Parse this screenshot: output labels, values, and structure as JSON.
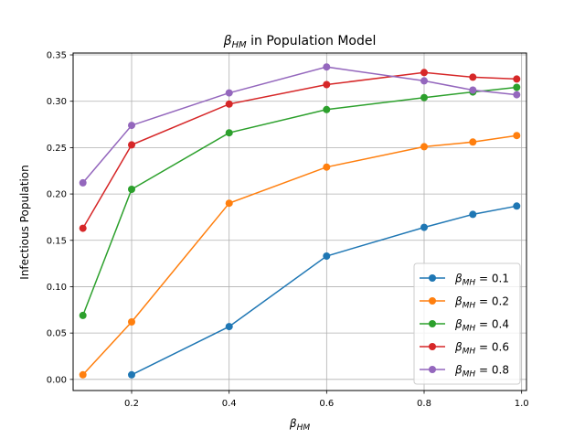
{
  "chart_data": {
    "type": "line",
    "title": "β_HM in Population Model",
    "title_main": "β",
    "title_sub": "HM",
    "title_rest": " in Population Model",
    "xlabel": "β_HM",
    "xlabel_main": "β",
    "xlabel_sub": "HM",
    "ylabel": "Infectious Population",
    "xlim": [
      0.08,
      1.01
    ],
    "ylim": [
      -0.012,
      0.352
    ],
    "xticks": [
      0.2,
      0.4,
      0.6,
      0.8,
      1.0
    ],
    "xtick_labels": [
      "0.2",
      "0.4",
      "0.6",
      "0.8",
      "1.0"
    ],
    "yticks": [
      0.0,
      0.05,
      0.1,
      0.15,
      0.2,
      0.25,
      0.3,
      0.35
    ],
    "ytick_labels": [
      "0.00",
      "0.05",
      "0.10",
      "0.15",
      "0.20",
      "0.25",
      "0.30",
      "0.35"
    ],
    "grid": true,
    "legend_position": "lower-right",
    "x": [
      0.1,
      0.2,
      0.4,
      0.6,
      0.8,
      0.9,
      0.99
    ],
    "series": [
      {
        "name": "β_MH = 0.1",
        "legend_main": "β",
        "legend_sub": "MH",
        "legend_rest": " = 0.1",
        "color": "#1f77b4",
        "values": [
          null,
          0.005,
          0.057,
          0.133,
          0.164,
          0.178,
          0.187
        ]
      },
      {
        "name": "β_MH = 0.2",
        "legend_main": "β",
        "legend_sub": "MH",
        "legend_rest": " = 0.2",
        "color": "#ff7f0e",
        "values": [
          0.005,
          0.062,
          0.19,
          0.229,
          0.251,
          0.256,
          0.263
        ]
      },
      {
        "name": "β_MH = 0.4",
        "legend_main": "β",
        "legend_sub": "MH",
        "legend_rest": " = 0.4",
        "color": "#2ca02c",
        "values": [
          0.069,
          0.205,
          0.266,
          0.291,
          0.304,
          0.31,
          0.315
        ]
      },
      {
        "name": "β_MH = 0.6",
        "legend_main": "β",
        "legend_sub": "MH",
        "legend_rest": " = 0.6",
        "color": "#d62728",
        "values": [
          0.163,
          0.253,
          0.297,
          0.318,
          0.331,
          0.326,
          0.324
        ]
      },
      {
        "name": "β_MH = 0.8",
        "legend_main": "β",
        "legend_sub": "MH",
        "legend_rest": " = 0.8",
        "color": "#9467bd",
        "values": [
          0.212,
          0.274,
          0.309,
          0.337,
          0.322,
          0.312,
          0.307
        ]
      }
    ]
  }
}
